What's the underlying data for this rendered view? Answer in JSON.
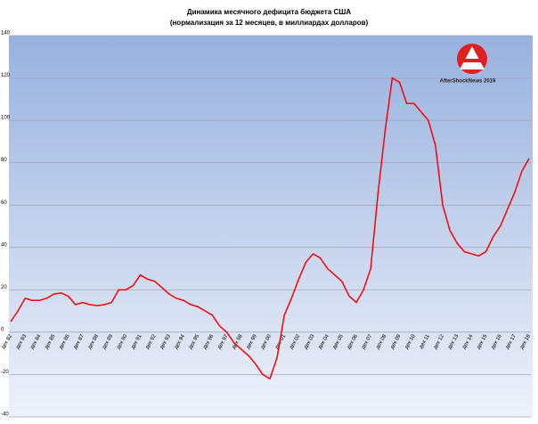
{
  "chart_data": {
    "type": "line",
    "title": "Динамика месячного дефицита бюджета США",
    "subtitle": "(нормализация за 12 месяцев, в миллиардах долларов)",
    "annotation": "AfterShockNews 2019",
    "categories": [
      "дек 82",
      null,
      "дек 83",
      null,
      "дек 84",
      null,
      "дек 85",
      null,
      "дек 86",
      null,
      "дек 87",
      null,
      "дек 88",
      null,
      "дек 89",
      null,
      "дек 90",
      null,
      "дек 91",
      null,
      "дек 92",
      null,
      "дек 93",
      null,
      "дек 94",
      null,
      "дек 95",
      null,
      "дек 96",
      null,
      "дек 97",
      null,
      "дек 98",
      null,
      "дек 99",
      null,
      "дек 00",
      null,
      "дек 01",
      null,
      "дек 02",
      null,
      "дек 03",
      null,
      "дек 04",
      null,
      "дек 05",
      null,
      "дек 06",
      null,
      "дек 07",
      null,
      "дек 08",
      null,
      "дек 09",
      null,
      "дек 10",
      null,
      "дек 11",
      null,
      "дек 12",
      null,
      "дек 13",
      null,
      "дек 14",
      null,
      "дек 15",
      null,
      "дек 16",
      null,
      "дек 17",
      null,
      "дек 18"
    ],
    "series": [
      {
        "color": "#ff0000",
        "values": [
          5,
          10,
          16,
          15,
          15,
          16,
          18,
          18.5,
          17,
          13,
          14,
          13,
          12.5,
          13,
          14,
          20,
          20,
          22,
          27,
          25,
          24,
          21,
          18,
          16,
          15,
          13,
          12,
          10,
          8,
          3,
          0,
          -5,
          -8,
          -11,
          -15,
          -20,
          -22,
          -12,
          8,
          16,
          25,
          33,
          37,
          35,
          30,
          27,
          24,
          17,
          14,
          20,
          30,
          65,
          95,
          120,
          118,
          108,
          108,
          104,
          100,
          88,
          60,
          48,
          42,
          38,
          37,
          36,
          38,
          45,
          50,
          58,
          66,
          76,
          82
        ]
      }
    ],
    "ylim": [
      -40,
      140
    ],
    "yticks": [
      -40,
      -20,
      0,
      20,
      40,
      60,
      80,
      100,
      120,
      140
    ],
    "grid": true
  }
}
